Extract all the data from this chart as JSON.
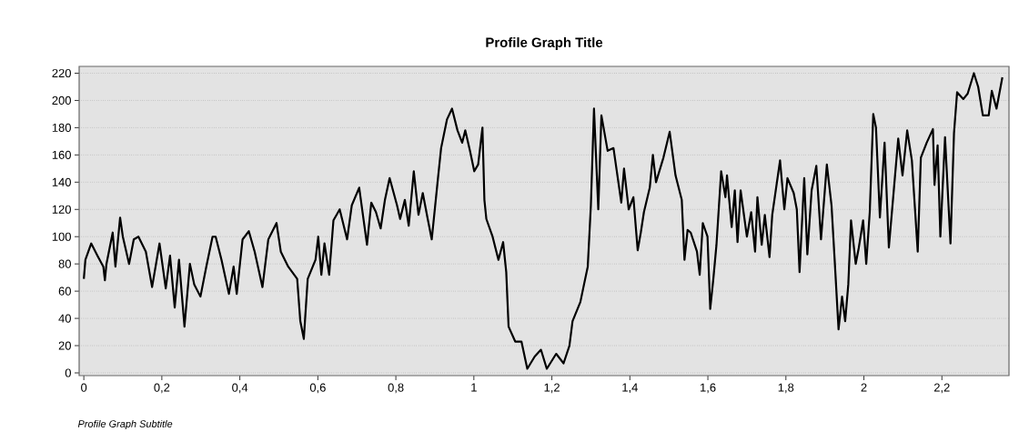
{
  "chart_data": {
    "type": "line",
    "title": "Profile Graph Title",
    "subtitle": "Profile Graph Subtitle",
    "xlim": [
      -0.012,
      2.372
    ],
    "ylim": [
      -2,
      225
    ],
    "xticks": [
      0,
      {
        "value": 0.2,
        "label": "0,2"
      },
      {
        "value": 0.4,
        "label": "0,4"
      },
      {
        "value": 0.6,
        "label": "0,6"
      },
      {
        "value": 0.8,
        "label": "0,8"
      },
      1,
      {
        "value": 1.2,
        "label": "1,2"
      },
      {
        "value": 1.4,
        "label": "1,4"
      },
      {
        "value": 1.6,
        "label": "1,6"
      },
      {
        "value": 1.8,
        "label": "1,8"
      },
      2,
      {
        "value": 2.2,
        "label": "2,2"
      }
    ],
    "yticks": [
      0,
      20,
      40,
      60,
      80,
      100,
      120,
      140,
      160,
      180,
      200,
      220
    ],
    "grid": "y",
    "marker": "none",
    "line_style": "solid",
    "series": [
      {
        "color": "#000000",
        "x": [
          0,
          0.004,
          0.019,
          0.035,
          0.05,
          0.054,
          0.058,
          0.074,
          0.081,
          0.093,
          0.1,
          0.116,
          0.128,
          0.14,
          0.159,
          0.175,
          0.194,
          0.21,
          0.221,
          0.233,
          0.244,
          0.258,
          0.272,
          0.283,
          0.299,
          0.314,
          0.33,
          0.338,
          0.353,
          0.372,
          0.384,
          0.392,
          0.407,
          0.423,
          0.438,
          0.458,
          0.473,
          0.494,
          0.505,
          0.524,
          0.547,
          0.555,
          0.564,
          0.574,
          0.594,
          0.601,
          0.609,
          0.617,
          0.629,
          0.64,
          0.656,
          0.675,
          0.687,
          0.706,
          0.726,
          0.737,
          0.749,
          0.761,
          0.772,
          0.784,
          0.803,
          0.811,
          0.823,
          0.833,
          0.846,
          0.858,
          0.869,
          0.881,
          0.892,
          0.908,
          0.916,
          0.931,
          0.944,
          0.958,
          0.97,
          0.978,
          0.99,
          1.001,
          1.011,
          1.022,
          1.027,
          1.032,
          1.048,
          1.063,
          1.075,
          1.083,
          1.089,
          1.106,
          1.122,
          1.137,
          1.156,
          1.172,
          1.187,
          1.211,
          1.23,
          1.245,
          1.253,
          1.273,
          1.281,
          1.292,
          1.3,
          1.308,
          1.319,
          1.327,
          1.343,
          1.358,
          1.366,
          1.378,
          1.385,
          1.397,
          1.409,
          1.42,
          1.428,
          1.436,
          1.451,
          1.459,
          1.467,
          1.486,
          1.502,
          1.517,
          1.533,
          1.54,
          1.548,
          1.556,
          1.572,
          1.579,
          1.587,
          1.599,
          1.606,
          1.614,
          1.622,
          1.634,
          1.645,
          1.649,
          1.661,
          1.669,
          1.676,
          1.684,
          1.7,
          1.711,
          1.721,
          1.727,
          1.738,
          1.746,
          1.758,
          1.765,
          1.785,
          1.796,
          1.804,
          1.82,
          1.828,
          1.835,
          1.847,
          1.855,
          1.866,
          1.878,
          1.89,
          1.905,
          1.917,
          1.925,
          1.935,
          1.944,
          1.952,
          1.96,
          1.967,
          1.979,
          1.987,
          1.998,
          2.006,
          2.015,
          2.024,
          2.031,
          2.041,
          2.053,
          2.064,
          2.076,
          2.088,
          2.099,
          2.111,
          2.123,
          2.138,
          2.146,
          2.161,
          2.177,
          2.181,
          2.189,
          2.196,
          2.208,
          2.222,
          2.231,
          2.239,
          2.255,
          2.266,
          2.282,
          2.293,
          2.305,
          2.32,
          2.328,
          2.34,
          2.355
        ],
        "values": [
          69,
          83,
          95,
          86,
          78,
          68,
          80,
          103,
          78,
          114,
          100,
          80,
          98,
          100,
          89,
          63,
          95,
          62,
          86,
          48,
          83,
          34,
          80,
          65,
          56,
          78,
          100,
          100,
          83,
          58,
          78,
          58,
          98,
          104,
          89,
          63,
          98,
          110,
          89,
          78,
          69,
          38,
          25,
          69,
          83,
          100,
          72,
          95,
          72,
          112,
          120,
          98,
          123,
          136,
          94,
          125,
          118,
          106,
          127,
          143,
          123,
          113,
          127,
          108,
          148,
          116,
          132,
          114,
          98,
          143,
          165,
          186,
          194,
          178,
          169,
          178,
          163,
          148,
          153,
          180,
          127,
          113,
          100,
          83,
          96,
          74,
          34,
          23,
          23,
          3,
          12,
          17,
          3,
          14,
          7,
          20,
          38,
          52,
          63,
          78,
          123,
          194,
          120,
          189,
          163,
          165,
          149,
          125,
          150,
          120,
          129,
          90,
          103,
          118,
          136,
          160,
          140,
          158,
          177,
          145,
          127,
          83,
          105,
          103,
          89,
          72,
          110,
          100,
          47,
          69,
          94,
          148,
          129,
          145,
          107,
          134,
          96,
          134,
          100,
          118,
          89,
          129,
          94,
          116,
          85,
          116,
          156,
          120,
          143,
          132,
          120,
          74,
          143,
          87,
          134,
          152,
          98,
          153,
          123,
          83,
          32,
          56,
          38,
          65,
          112,
          80,
          92,
          112,
          80,
          118,
          190,
          180,
          114,
          169,
          92,
          132,
          172,
          145,
          178,
          156,
          89,
          158,
          169,
          179,
          138,
          167,
          100,
          173,
          95,
          176,
          206,
          201,
          205,
          220,
          210,
          189,
          189,
          207,
          194,
          217
        ]
      }
    ]
  }
}
